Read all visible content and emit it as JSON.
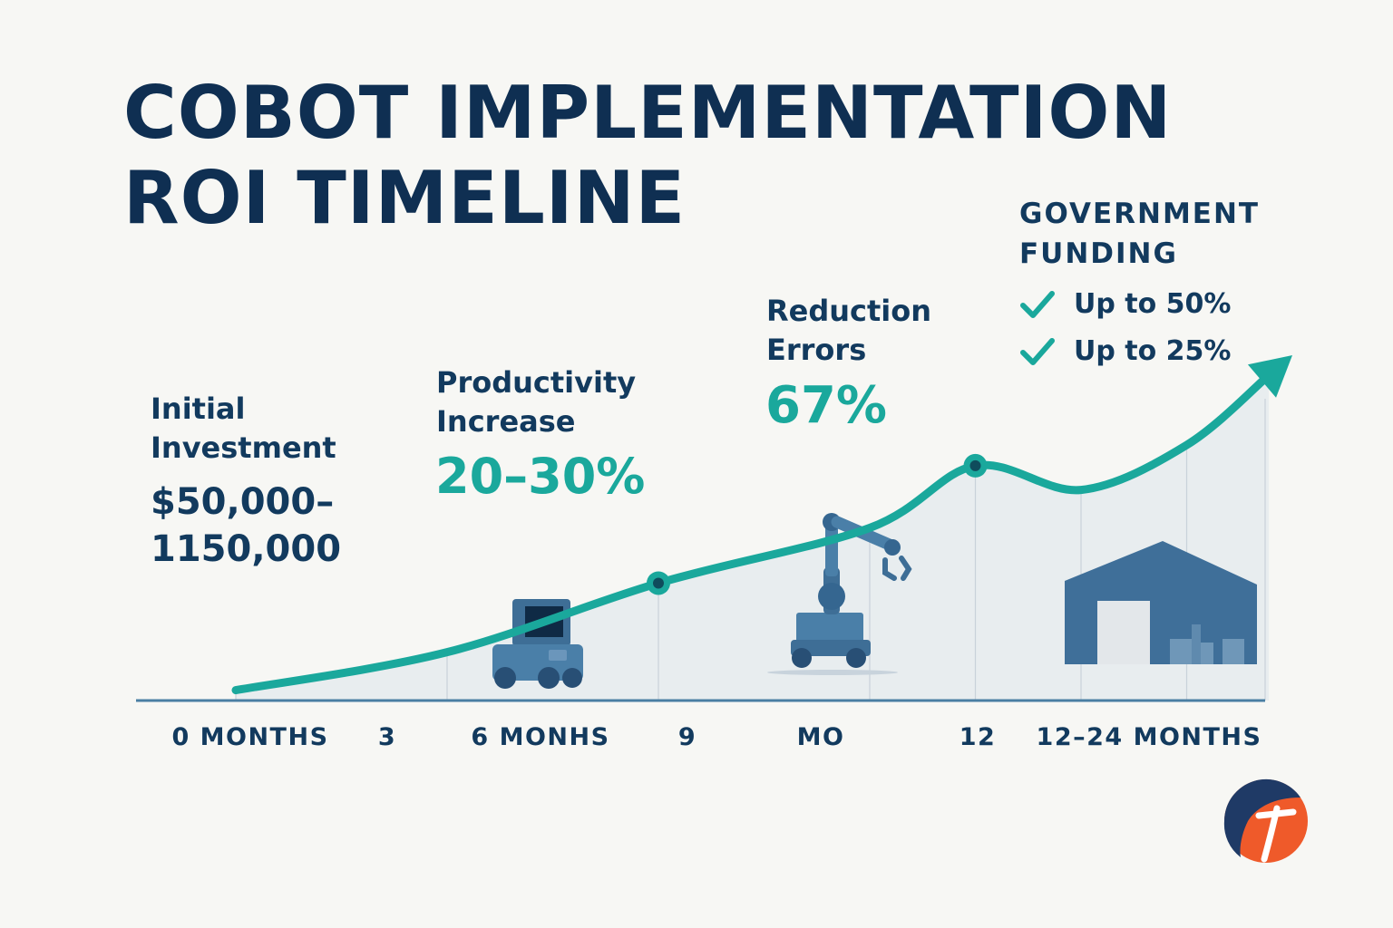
{
  "title": {
    "line1": "COBOT IMPLEMENTATION",
    "line2": "ROI TIMELINE"
  },
  "callouts": {
    "investment": {
      "line1": "Initial",
      "line2": "Investment",
      "value_line1": "$50,000–",
      "value_line2": "1150,000"
    },
    "productivity": {
      "line1": "Productivity",
      "line2": "Increase",
      "value": "20–30%"
    },
    "errors": {
      "line1": "Reduction",
      "line2": "Errors",
      "value": "67%"
    }
  },
  "funding": {
    "title_line1": "GOVERNMENT",
    "title_line2": "FUNDING",
    "items": [
      {
        "text": "Up to 50%"
      },
      {
        "text": "Up to 25%"
      }
    ]
  },
  "colors": {
    "navy": "#123a5e",
    "teal": "#1aa89c",
    "axis": "#4a7fa3",
    "icon_blue": "#3e6e96",
    "logo_orange": "#ef5a2a"
  },
  "icons": [
    "check-icon",
    "mobile-robot-icon",
    "robot-arm-icon",
    "factory-icon",
    "logo-icon"
  ],
  "chart_data": {
    "type": "line",
    "title": "COBOT IMPLEMENTATION ROI TIMELINE",
    "x_tick_labels": [
      "0 MONTHS",
      "3",
      "6 MONHS",
      "9",
      "MO",
      "12",
      "12–24 MONTHS"
    ],
    "series": [
      {
        "x": [
          0,
          3,
          6,
          9,
          10.5,
          12,
          13.5,
          15
        ],
        "values": [
          3,
          14,
          34,
          50,
          68,
          61,
          74,
          100
        ],
        "markers_at": [
          6,
          10.5
        ]
      }
    ],
    "y_range": [
      0,
      100
    ],
    "grid": true,
    "y_axis_visible": false
  }
}
